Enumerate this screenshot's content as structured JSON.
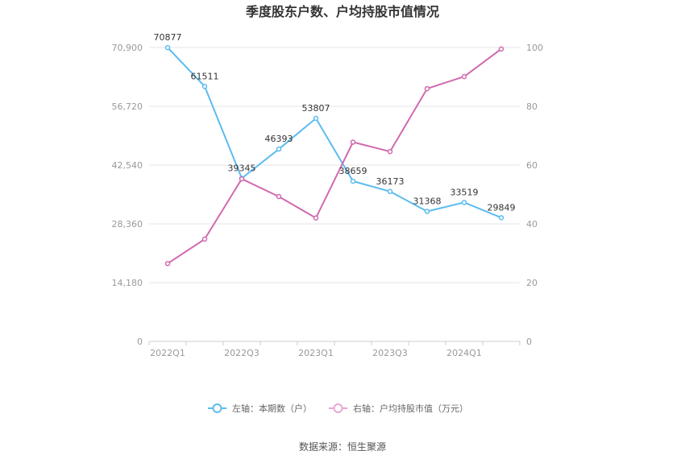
{
  "chart_data": {
    "type": "line",
    "title": "季度股东户数、户均持股市值情况",
    "categories": [
      "2022Q1",
      "2022Q2",
      "2022Q3",
      "2022Q4",
      "2023Q1",
      "2023Q2",
      "2023Q3",
      "2023Q4",
      "2024Q1",
      "2024Q2"
    ],
    "x_tick_labels": [
      "2022Q1",
      "2022Q3",
      "2023Q1",
      "2023Q3",
      "2024Q1"
    ],
    "left_axis": {
      "ticks": [
        "0",
        "14,180",
        "28,360",
        "42,540",
        "56,720",
        "70,900"
      ],
      "ylim": [
        0,
        70900
      ]
    },
    "right_axis": {
      "ticks": [
        "0",
        "20",
        "40",
        "60",
        "80",
        "100"
      ],
      "ylim": [
        0,
        100
      ]
    },
    "series": [
      {
        "name": "左轴：本期数（户）",
        "axis": "left",
        "color": "#5bbcf0",
        "values": [
          70877,
          61511,
          39345,
          46393,
          53807,
          38659,
          36173,
          31368,
          33519,
          29849
        ],
        "labels": [
          "70877",
          "61511",
          "39345",
          "46393",
          "53807",
          "38659",
          "36173",
          "31368",
          "33519",
          "29849"
        ]
      },
      {
        "name": "右轴：户均持股市值（万元）",
        "axis": "right",
        "color": "#d16aae",
        "values": [
          26.5,
          34.8,
          55.3,
          49.3,
          42.0,
          67.8,
          64.6,
          86.0,
          90.1,
          99.5
        ]
      }
    ],
    "grid": true,
    "legend_position": "bottom"
  },
  "source": "数据来源：恒生聚源"
}
